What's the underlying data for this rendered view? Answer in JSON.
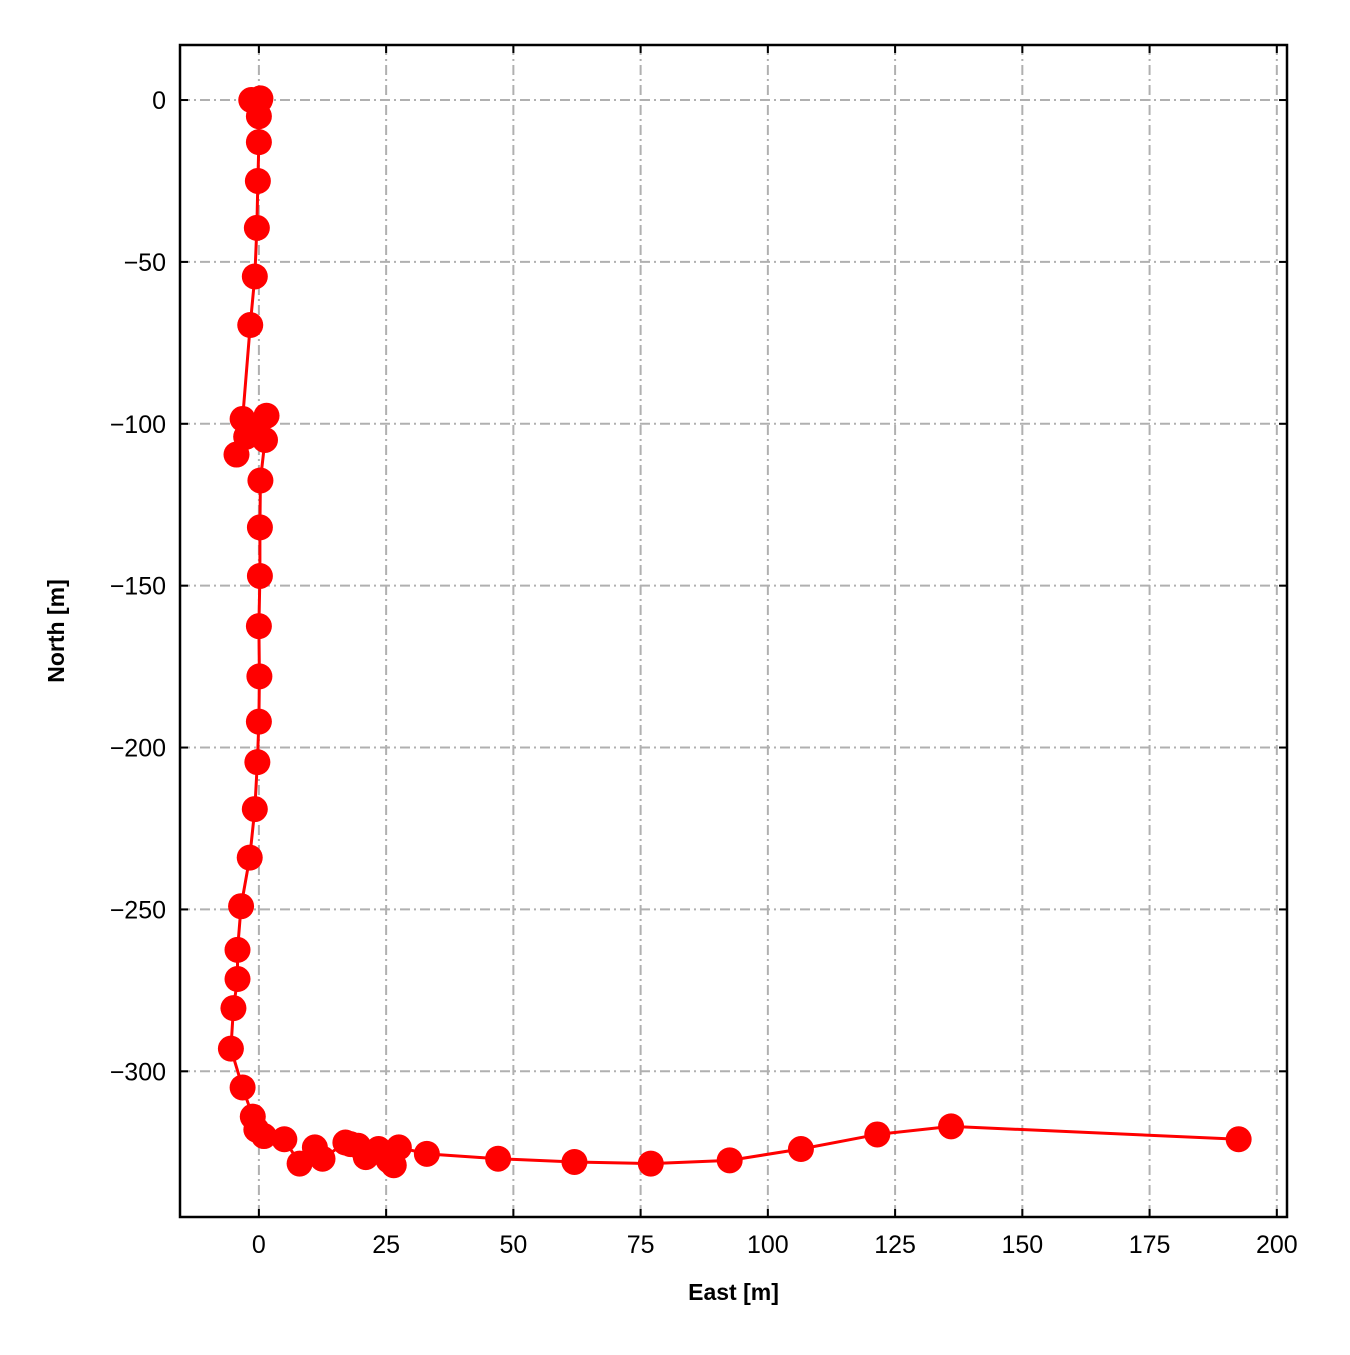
{
  "chart_data": {
    "type": "line",
    "xlabel": "East [m]",
    "ylabel": "North [m]",
    "xlim": [
      -15.5,
      202
    ],
    "ylim": [
      -345,
      17
    ],
    "xticks": [
      0,
      25,
      50,
      75,
      100,
      125,
      150,
      175,
      200
    ],
    "xtick_labels": [
      "0",
      "25",
      "50",
      "75",
      "100",
      "125",
      "150",
      "175",
      "200"
    ],
    "yticks": [
      0,
      -50,
      -100,
      -150,
      -200,
      -250,
      -300
    ],
    "ytick_labels": [
      "0",
      "−50",
      "−100",
      "−150",
      "−200",
      "−250",
      "−300"
    ],
    "grid": true,
    "grid_style": "dash-dot",
    "series": [
      {
        "color": "#ff0000",
        "marker": "circle",
        "points": [
          [
            0.2,
            0.0
          ],
          [
            -1.5,
            0.0
          ],
          [
            0.3,
            0.5
          ],
          [
            0.0,
            -5.0
          ],
          [
            0.0,
            -13.0
          ],
          [
            -0.2,
            -25.0
          ],
          [
            -0.4,
            -39.5
          ],
          [
            -0.8,
            -54.5
          ],
          [
            -1.7,
            -69.5
          ],
          [
            -3.2,
            -98.5
          ],
          [
            -2.0,
            -101.0
          ],
          [
            -4.4,
            -109.5
          ],
          [
            -2.5,
            -104.0
          ],
          [
            1.5,
            -97.5
          ],
          [
            1.2,
            -105.0
          ],
          [
            0.3,
            -117.5
          ],
          [
            0.2,
            -132.0
          ],
          [
            0.2,
            -147.0
          ],
          [
            0.0,
            -162.5
          ],
          [
            0.1,
            -178.0
          ],
          [
            0.0,
            -192.0
          ],
          [
            -0.3,
            -204.5
          ],
          [
            -0.8,
            -219.0
          ],
          [
            -1.8,
            -234.0
          ],
          [
            -3.5,
            -249.0
          ],
          [
            -4.2,
            -262.5
          ],
          [
            -4.2,
            -271.5
          ],
          [
            -5.0,
            -280.5
          ],
          [
            -5.5,
            -293.0
          ],
          [
            -3.2,
            -305.0
          ],
          [
            -1.2,
            -314.0
          ],
          [
            -0.5,
            -318.0
          ],
          [
            1.0,
            -320.0
          ],
          [
            5.0,
            -321.0
          ],
          [
            8.0,
            -328.5
          ],
          [
            11.0,
            -323.5
          ],
          [
            12.5,
            -327.0
          ],
          [
            17.0,
            -322.0
          ],
          [
            18.0,
            -322.5
          ],
          [
            19.5,
            -323.0
          ],
          [
            21.0,
            -326.5
          ],
          [
            23.5,
            -324.0
          ],
          [
            25.5,
            -327.5
          ],
          [
            26.5,
            -329.0
          ],
          [
            27.5,
            -323.5
          ],
          [
            33.0,
            -325.5
          ],
          [
            47.0,
            -327.0
          ],
          [
            62.0,
            -328.0
          ],
          [
            77.0,
            -328.5
          ],
          [
            92.5,
            -327.5
          ],
          [
            106.5,
            -324.0
          ],
          [
            121.5,
            -319.5
          ],
          [
            136.0,
            -317.0
          ],
          [
            192.5,
            -321.0
          ]
        ]
      }
    ]
  }
}
